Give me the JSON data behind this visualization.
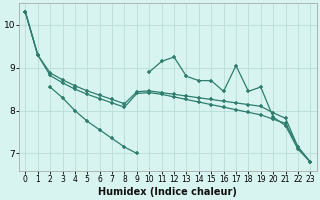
{
  "xlabel": "Humidex (Indice chaleur)",
  "x_data": [
    0,
    1,
    2,
    3,
    4,
    5,
    6,
    7,
    8,
    9,
    10,
    11,
    12,
    13,
    14,
    15,
    16,
    17,
    18,
    19,
    20,
    21,
    22,
    23
  ],
  "line_jagged": [
    10.3,
    9.3,
    null,
    null,
    8.55,
    null,
    null,
    null,
    null,
    null,
    8.9,
    9.15,
    9.25,
    8.8,
    8.7,
    8.7,
    8.45,
    9.05,
    8.45,
    8.55,
    7.85,
    7.65,
    7.1,
    6.8
  ],
  "line_steep": [
    null,
    null,
    8.55,
    8.3,
    8.0,
    7.75,
    7.55,
    7.35,
    7.15,
    7.0,
    null,
    null,
    null,
    null,
    null,
    null,
    null,
    null,
    null,
    null,
    null,
    null,
    null,
    null
  ],
  "line_straight1": [
    10.3,
    9.3,
    8.82,
    8.65,
    8.5,
    8.38,
    8.28,
    8.18,
    8.08,
    8.4,
    8.42,
    8.38,
    8.32,
    8.26,
    8.2,
    8.14,
    8.08,
    8.02,
    7.96,
    7.9,
    7.8,
    7.7,
    7.15,
    6.8
  ],
  "line_straight2": [
    10.3,
    9.3,
    8.88,
    8.72,
    8.58,
    8.46,
    8.36,
    8.26,
    8.16,
    8.44,
    8.46,
    8.42,
    8.38,
    8.34,
    8.3,
    8.26,
    8.22,
    8.18,
    8.14,
    8.1,
    7.95,
    7.82,
    7.15,
    6.8
  ],
  "ylim": [
    6.6,
    10.5
  ],
  "xlim": [
    -0.5,
    23.5
  ],
  "yticks": [
    7,
    8,
    9,
    10
  ],
  "color": "#2e7d6e",
  "bg_color": "#d8f4f0",
  "grid_color": "#b8ddd8",
  "marker": "+"
}
